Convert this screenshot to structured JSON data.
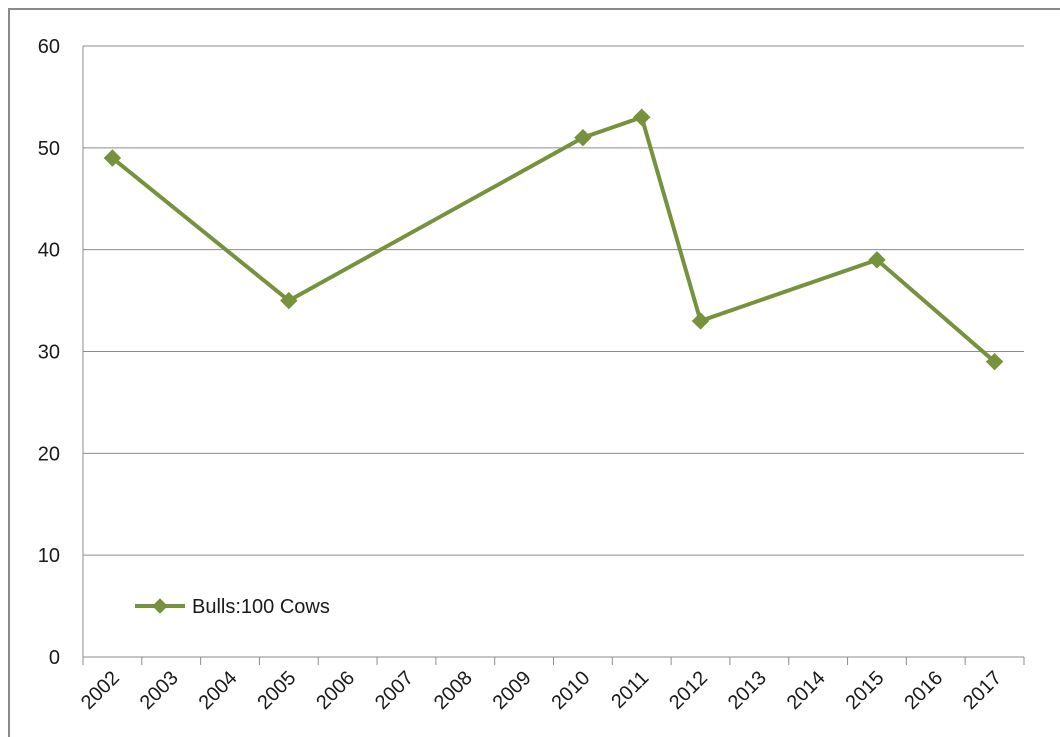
{
  "chart_data": {
    "type": "line",
    "categories": [
      "2002",
      "2003",
      "2004",
      "2005",
      "2006",
      "2007",
      "2008",
      "2009",
      "2010",
      "2011",
      "2012",
      "2013",
      "2014",
      "2015",
      "2016",
      "2017"
    ],
    "series": [
      {
        "name": "Bulls:100 Cows",
        "points": [
          {
            "x": "2002",
            "y": 49
          },
          {
            "x": "2005",
            "y": 35
          },
          {
            "x": "2010",
            "y": 51
          },
          {
            "x": "2011",
            "y": 53
          },
          {
            "x": "2012",
            "y": 33
          },
          {
            "x": "2015",
            "y": 39
          },
          {
            "x": "2017",
            "y": 29
          }
        ],
        "color": "#76923c",
        "marker": "diamond"
      }
    ],
    "y_ticks": [
      "0",
      "10",
      "20",
      "30",
      "40",
      "50",
      "60"
    ],
    "ylim": [
      0,
      60
    ],
    "grid": "horizontal",
    "legend_position": "lower-left",
    "title": "",
    "xlabel": "",
    "ylabel": ""
  },
  "colors": {
    "series": "#76923c",
    "grid": "#8c8c8c",
    "axis": "#8c8c8c",
    "frame": "#8a8a8a"
  }
}
